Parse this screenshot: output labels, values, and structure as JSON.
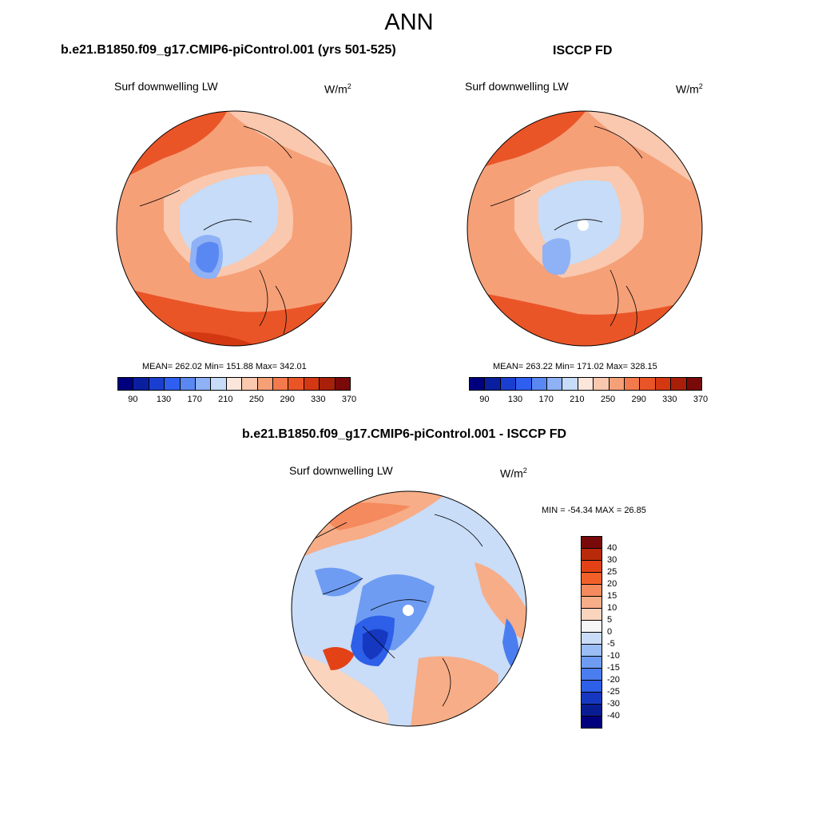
{
  "title": "ANN",
  "panels": [
    {
      "case": "b.e21.B1850.f09_g17.CMIP6-piControl.001 (yrs 501-525)",
      "variable": "Surf downwelling LW",
      "units": "W/m",
      "units_sup": "2",
      "stats": "MEAN= 262.02  Min= 151.88  Max= 342.01",
      "colorbar_labels": [
        "90",
        "130",
        "170",
        "210",
        "250",
        "290",
        "330",
        "370"
      ]
    },
    {
      "case": "ISCCP FD",
      "variable": "Surf downwelling LW",
      "units": "W/m",
      "units_sup": "2",
      "stats": "MEAN= 263.22  Min= 171.02  Max= 328.15",
      "colorbar_labels": [
        "90",
        "130",
        "170",
        "210",
        "250",
        "290",
        "330",
        "370"
      ]
    }
  ],
  "difference": {
    "case": "b.e21.B1850.f09_g17.CMIP6-piControl.001 - ISCCP FD",
    "variable": "Surf downwelling LW",
    "units": "W/m",
    "units_sup": "2",
    "stats": "MIN = -54.34 MAX =  26.85",
    "colorbar_labels": [
      "40",
      "30",
      "25",
      "20",
      "15",
      "10",
      "5",
      "0",
      "-5",
      "-10",
      "-15",
      "-20",
      "-25",
      "-30",
      "-40"
    ]
  },
  "colors": {
    "abs_scale": [
      "#00007f",
      "#0a1fa0",
      "#1a3fd0",
      "#2e5ff0",
      "#5a88f2",
      "#8fb1f5",
      "#c6dcf8",
      "#fbe6dc",
      "#f9c8ae",
      "#f6a078",
      "#f27a4d",
      "#ea5528",
      "#d43812",
      "#a8200a",
      "#7a0a0a"
    ],
    "diff_scale": [
      "#7a0a0a",
      "#b82a0a",
      "#e34216",
      "#f2602a",
      "#f58a5e",
      "#f7ad88",
      "#fad4bd",
      "#f6f6f6",
      "#c9dcf8",
      "#99bdf4",
      "#6e9cf2",
      "#4a7ef0",
      "#2d5fe8",
      "#1638c0",
      "#0a1c94",
      "#00007f"
    ]
  }
}
